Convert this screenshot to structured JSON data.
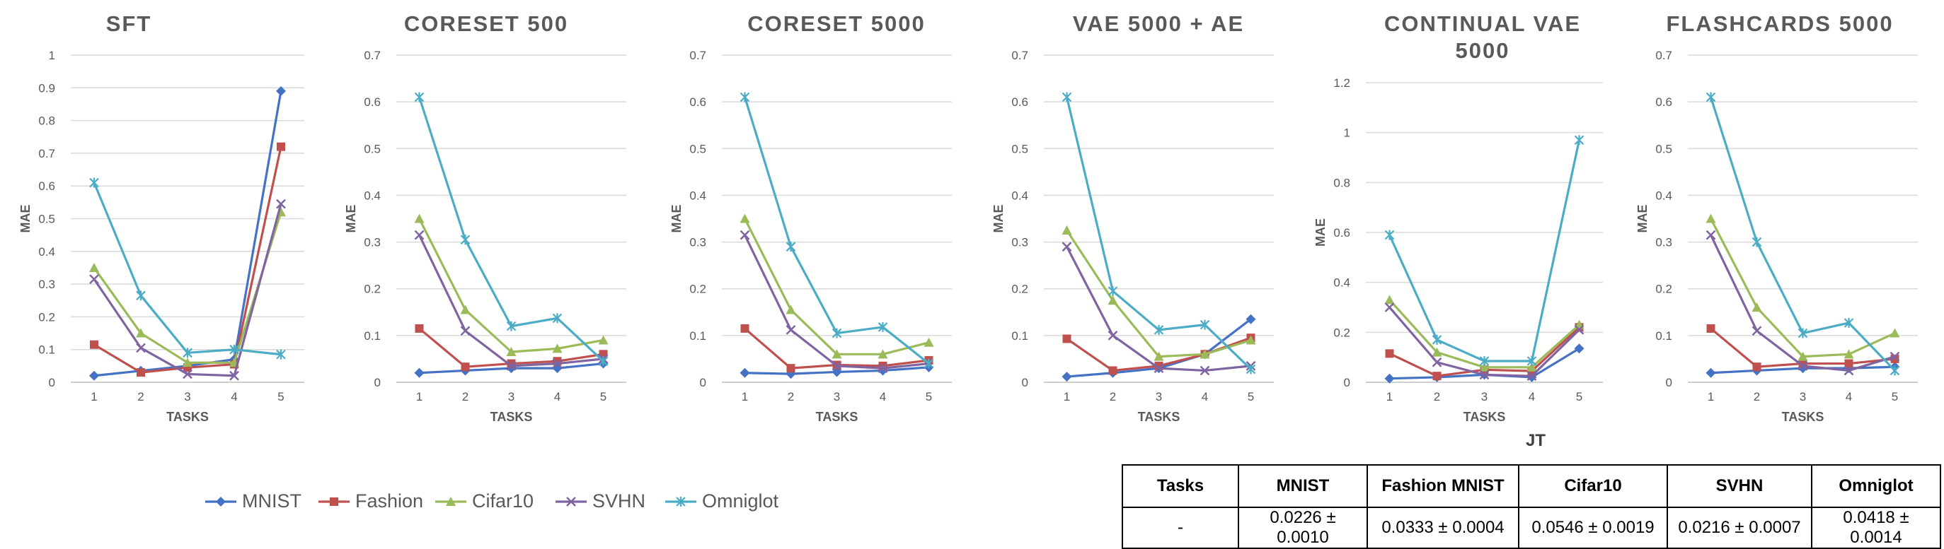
{
  "chart_data": [
    {
      "type": "line",
      "title": "SFT",
      "xlabel": "TASKS",
      "ylabel": "MAE",
      "x": [
        1,
        2,
        3,
        4,
        5
      ],
      "yticks": [
        "0",
        "0.1",
        "0.2",
        "0.3",
        "0.4",
        "0.5",
        "0.6",
        "0.7",
        "0.8",
        "0.9",
        "1"
      ],
      "ylim": [
        0,
        1
      ],
      "series": [
        {
          "name": "MNIST",
          "values": [
            0.02,
            0.035,
            0.05,
            0.07,
            0.89
          ]
        },
        {
          "name": "Fashion",
          "values": [
            0.115,
            0.03,
            0.045,
            0.055,
            0.72
          ]
        },
        {
          "name": "Cifar10",
          "values": [
            0.35,
            0.15,
            0.06,
            0.06,
            0.52
          ]
        },
        {
          "name": "SVHN",
          "values": [
            0.315,
            0.105,
            0.025,
            0.02,
            0.545
          ]
        },
        {
          "name": "Omniglot",
          "values": [
            0.61,
            0.265,
            0.09,
            0.1,
            0.085
          ]
        }
      ]
    },
    {
      "type": "line",
      "title": "CORESET 500",
      "xlabel": "TASKS",
      "ylabel": "MAE",
      "x": [
        1,
        2,
        3,
        4,
        5
      ],
      "yticks": [
        "0",
        "0.1",
        "0.2",
        "0.3",
        "0.4",
        "0.5",
        "0.6",
        "0.7"
      ],
      "ylim": [
        0,
        0.7
      ],
      "series": [
        {
          "name": "MNIST",
          "values": [
            0.02,
            0.025,
            0.03,
            0.03,
            0.04
          ]
        },
        {
          "name": "Fashion",
          "values": [
            0.115,
            0.033,
            0.04,
            0.045,
            0.06
          ]
        },
        {
          "name": "Cifar10",
          "values": [
            0.35,
            0.155,
            0.065,
            0.072,
            0.09
          ]
        },
        {
          "name": "SVHN",
          "values": [
            0.315,
            0.11,
            0.035,
            0.04,
            0.05
          ]
        },
        {
          "name": "Omniglot",
          "values": [
            0.61,
            0.305,
            0.12,
            0.137,
            0.045
          ]
        }
      ]
    },
    {
      "type": "line",
      "title": "CORESET 5000",
      "xlabel": "TASKS",
      "ylabel": "MAE",
      "x": [
        1,
        2,
        3,
        4,
        5
      ],
      "yticks": [
        "0",
        "0.1",
        "0.2",
        "0.3",
        "0.4",
        "0.5",
        "0.6",
        "0.7"
      ],
      "ylim": [
        0,
        0.7
      ],
      "series": [
        {
          "name": "MNIST",
          "values": [
            0.02,
            0.018,
            0.022,
            0.025,
            0.032
          ]
        },
        {
          "name": "Fashion",
          "values": [
            0.115,
            0.03,
            0.037,
            0.035,
            0.047
          ]
        },
        {
          "name": "Cifar10",
          "values": [
            0.35,
            0.155,
            0.06,
            0.06,
            0.085
          ]
        },
        {
          "name": "SVHN",
          "values": [
            0.315,
            0.112,
            0.035,
            0.03,
            0.04
          ]
        },
        {
          "name": "Omniglot",
          "values": [
            0.61,
            0.29,
            0.105,
            0.118,
            0.04
          ]
        }
      ]
    },
    {
      "type": "line",
      "title": "VAE 5000 + AE",
      "xlabel": "TASKS",
      "ylabel": "MAE",
      "x": [
        1,
        2,
        3,
        4,
        5
      ],
      "yticks": [
        "0",
        "0.1",
        "0.2",
        "0.3",
        "0.4",
        "0.5",
        "0.6",
        "0.7"
      ],
      "ylim": [
        0,
        0.7
      ],
      "series": [
        {
          "name": "MNIST",
          "values": [
            0.012,
            0.02,
            0.03,
            0.06,
            0.135
          ]
        },
        {
          "name": "Fashion",
          "values": [
            0.093,
            0.025,
            0.035,
            0.06,
            0.095
          ]
        },
        {
          "name": "Cifar10",
          "values": [
            0.325,
            0.175,
            0.055,
            0.06,
            0.09
          ]
        },
        {
          "name": "SVHN",
          "values": [
            0.29,
            0.1,
            0.03,
            0.025,
            0.035
          ]
        },
        {
          "name": "Omniglot",
          "values": [
            0.61,
            0.195,
            0.112,
            0.123,
            0.028
          ]
        }
      ]
    },
    {
      "type": "line",
      "title": "CONTINUAL VAE 5000",
      "xlabel": "TASKS",
      "ylabel": "MAE",
      "x": [
        1,
        2,
        3,
        4,
        5
      ],
      "yticks": [
        "0",
        "0.2",
        "0.4",
        "0.6",
        "0.8",
        "1",
        "1.2"
      ],
      "ylim": [
        0,
        1.2
      ],
      "series": [
        {
          "name": "MNIST",
          "values": [
            0.015,
            0.02,
            0.03,
            0.02,
            0.135
          ]
        },
        {
          "name": "Fashion",
          "values": [
            0.115,
            0.025,
            0.05,
            0.045,
            0.22
          ]
        },
        {
          "name": "Cifar10",
          "values": [
            0.33,
            0.12,
            0.06,
            0.06,
            0.23
          ]
        },
        {
          "name": "SVHN",
          "values": [
            0.3,
            0.08,
            0.03,
            0.025,
            0.21
          ]
        },
        {
          "name": "Omniglot",
          "values": [
            0.59,
            0.17,
            0.085,
            0.085,
            0.97
          ]
        }
      ]
    },
    {
      "type": "line",
      "title": "FLASHCARDS 5000",
      "xlabel": "TASKS",
      "ylabel": "MAE",
      "x": [
        1,
        2,
        3,
        4,
        5
      ],
      "yticks": [
        "0",
        "0.1",
        "0.2",
        "0.3",
        "0.4",
        "0.5",
        "0.6",
        "0.7"
      ],
      "ylim": [
        0,
        0.7
      ],
      "series": [
        {
          "name": "MNIST",
          "values": [
            0.02,
            0.025,
            0.03,
            0.03,
            0.033
          ]
        },
        {
          "name": "Fashion",
          "values": [
            0.115,
            0.033,
            0.04,
            0.04,
            0.05
          ]
        },
        {
          "name": "Cifar10",
          "values": [
            0.35,
            0.16,
            0.055,
            0.06,
            0.105
          ]
        },
        {
          "name": "SVHN",
          "values": [
            0.315,
            0.11,
            0.035,
            0.025,
            0.055
          ]
        },
        {
          "name": "Omniglot",
          "values": [
            0.61,
            0.3,
            0.105,
            0.127,
            0.025
          ]
        }
      ]
    }
  ],
  "colors": {
    "MNIST": "#4472C4",
    "Fashion": "#C0504D",
    "Cifar10": "#9BBB59",
    "SVHN": "#8064A2",
    "Omniglot": "#4BACC6"
  },
  "markers": {
    "MNIST": "diamond",
    "Fashion": "square",
    "Cifar10": "triangle",
    "SVHN": "x",
    "Omniglot": "star"
  },
  "legend": [
    "MNIST",
    "Fashion",
    "Cifar10",
    "SVHN",
    "Omniglot"
  ],
  "jt_table": {
    "title": "JT",
    "headers": [
      "Tasks",
      "MNIST",
      "Fashion MNIST",
      "Cifar10",
      "SVHN",
      "Omniglot"
    ],
    "row": [
      "-",
      "0.0226 ± 0.0010",
      "0.0333 ± 0.0004",
      "0.0546 ± 0.0019",
      "0.0216 ± 0.0007",
      "0.0418 ± 0.0014"
    ]
  }
}
